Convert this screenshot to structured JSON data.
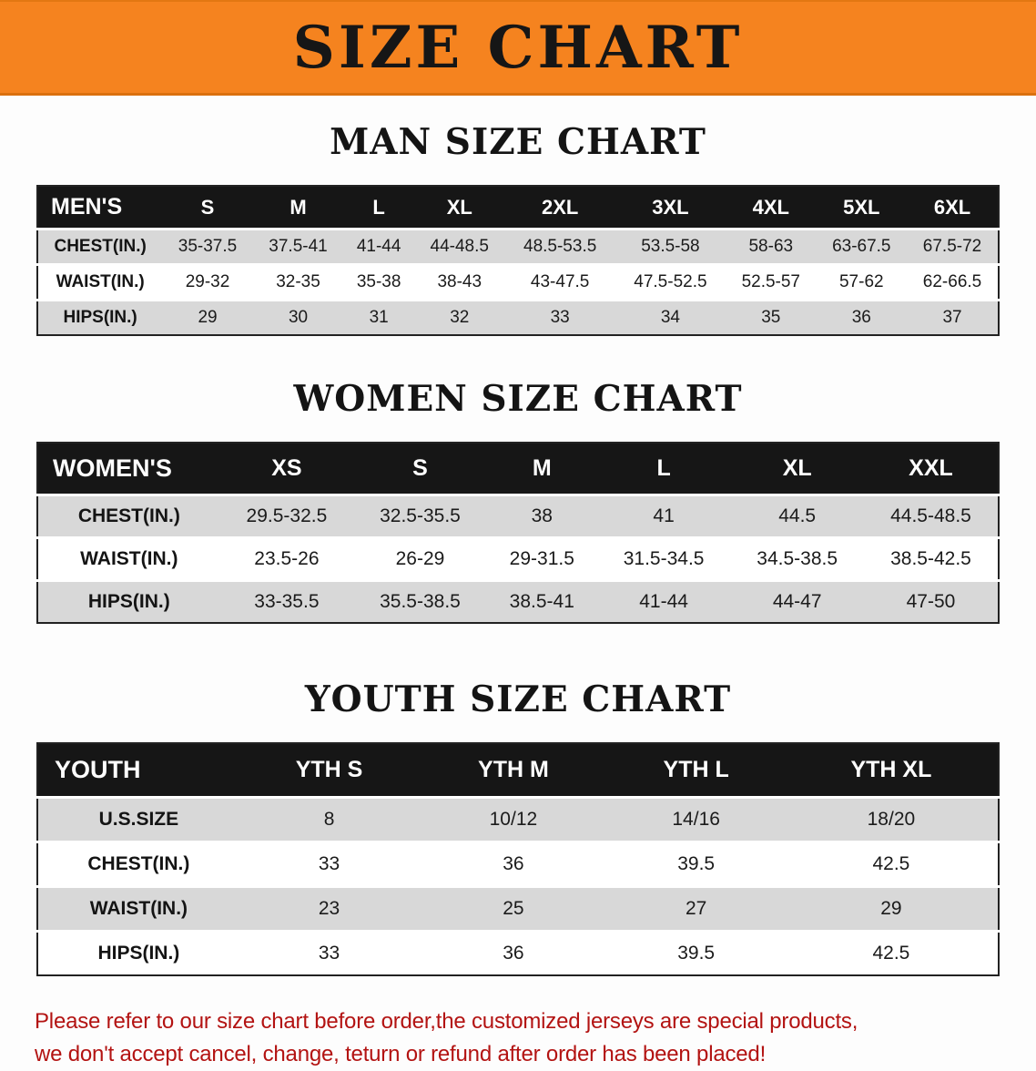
{
  "banner": {
    "title": "SIZE CHART"
  },
  "sections": [
    {
      "id": "mens",
      "heading": "MAN SIZE CHART",
      "table": {
        "header": [
          "MEN'S",
          "S",
          "M",
          "L",
          "XL",
          "2XL",
          "3XL",
          "4XL",
          "5XL",
          "6XL"
        ],
        "rows": [
          [
            "CHEST(IN.)",
            "35-37.5",
            "37.5-41",
            "41-44",
            "44-48.5",
            "48.5-53.5",
            "53.5-58",
            "58-63",
            "63-67.5",
            "67.5-72"
          ],
          [
            "WAIST(IN.)",
            "29-32",
            "32-35",
            "35-38",
            "38-43",
            "43-47.5",
            "47.5-52.5",
            "52.5-57",
            "57-62",
            "62-66.5"
          ],
          [
            "HIPS(IN.)",
            "29",
            "30",
            "31",
            "32",
            "33",
            "34",
            "35",
            "36",
            "37"
          ]
        ]
      }
    },
    {
      "id": "womens",
      "heading": "WOMEN SIZE CHART",
      "table": {
        "header": [
          "WOMEN'S",
          "XS",
          "S",
          "M",
          "L",
          "XL",
          "XXL"
        ],
        "rows": [
          [
            "CHEST(IN.)",
            "29.5-32.5",
            "32.5-35.5",
            "38",
            "41",
            "44.5",
            "44.5-48.5"
          ],
          [
            "WAIST(IN.)",
            "23.5-26",
            "26-29",
            "29-31.5",
            "31.5-34.5",
            "34.5-38.5",
            "38.5-42.5"
          ],
          [
            "HIPS(IN.)",
            "33-35.5",
            "35.5-38.5",
            "38.5-41",
            "41-44",
            "44-47",
            "47-50"
          ]
        ]
      }
    },
    {
      "id": "youth",
      "heading": "YOUTH SIZE CHART",
      "table": {
        "header": [
          "YOUTH",
          "YTH S",
          "YTH M",
          "YTH L",
          "YTH XL"
        ],
        "rows": [
          [
            "U.S.SIZE",
            "8",
            "10/12",
            "14/16",
            "18/20"
          ],
          [
            "CHEST(IN.)",
            "33",
            "36",
            "39.5",
            "42.5"
          ],
          [
            "WAIST(IN.)",
            "23",
            "25",
            "27",
            "29"
          ],
          [
            "HIPS(IN.)",
            "33",
            "36",
            "39.5",
            "42.5"
          ]
        ]
      }
    }
  ],
  "disclaimer": {
    "line1": "Please refer to our size chart before order,the customized jerseys are special products,",
    "line2": "we don't accept cancel, change, teturn or refund after order has been placed!"
  },
  "colors": {
    "banner_orange": "#f5831f",
    "header_black": "#161616",
    "row_gray": "#d8d8d8",
    "disclaimer_red": "#b31312",
    "text_black": "#141414"
  }
}
